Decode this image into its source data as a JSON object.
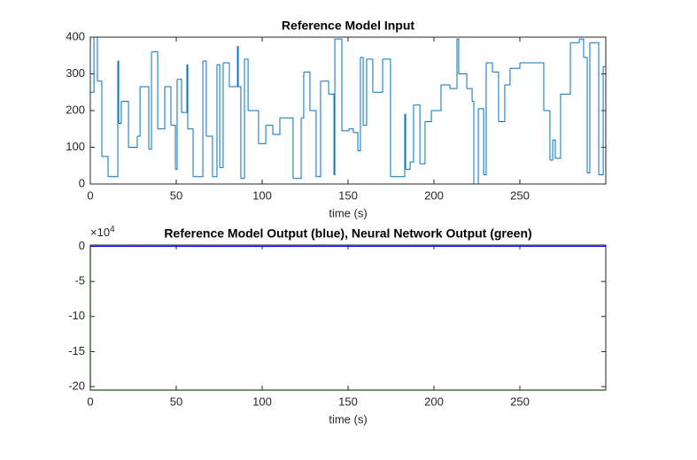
{
  "chart_data": [
    {
      "type": "stairs",
      "title": "Reference Model Input",
      "xlabel": "time (s)",
      "xlim": [
        0,
        300
      ],
      "ylim": [
        0,
        400
      ],
      "xticks": [
        0,
        50,
        100,
        150,
        200,
        250
      ],
      "yticks": [
        0,
        100,
        200,
        300,
        400
      ],
      "series": [
        {
          "color": "#0072BD",
          "x": [
            0,
            2.1,
            4.1,
            6.7,
            10.3,
            16.0,
            16.5,
            18.0,
            22.2,
            27.3,
            28.9,
            34.0,
            35.6,
            39.2,
            43.3,
            46.9,
            49.5,
            50.5,
            53.1,
            56.2,
            56.7,
            59.8,
            65.5,
            67.5,
            71.1,
            73.7,
            75.3,
            77.3,
            80.9,
            85.6,
            86.1,
            87.6,
            89.7,
            91.8,
            97.9,
            102.1,
            106.2,
            110.3,
            118.0,
            122.7,
            124.2,
            127.8,
            131.4,
            134.0,
            138.7,
            141.8,
            142.3,
            146.4,
            150.5,
            153.1,
            155.7,
            157.2,
            158.8,
            160.8,
            164.4,
            170.1,
            174.7,
            179.9,
            183.0,
            183.5,
            186.1,
            188.1,
            191.8,
            194.8,
            198.5,
            204.1,
            209.3,
            213.4,
            214.4,
            219.1,
            222.2,
            223.2,
            225.8,
            228.9,
            230.4,
            234.0,
            237.6,
            241.2,
            244.3,
            250.0,
            263.9,
            267.5,
            269.1,
            270.6,
            273.7,
            279.4,
            284.6,
            287.1,
            289.2,
            290.7,
            295.9,
            298.5,
            300
          ],
          "values": [
            250,
            400,
            280,
            75,
            20,
            335,
            165,
            225,
            100,
            130,
            265,
            95,
            360,
            150,
            265,
            160,
            40,
            285,
            195,
            325,
            150,
            20,
            335,
            130,
            20,
            325,
            45,
            330,
            265,
            375,
            265,
            15,
            340,
            200,
            110,
            160,
            135,
            180,
            15,
            180,
            305,
            200,
            20,
            280,
            245,
            25,
            395,
            145,
            150,
            140,
            90,
            345,
            160,
            340,
            250,
            340,
            20,
            20,
            190,
            40,
            60,
            215,
            55,
            170,
            200,
            270,
            260,
            395,
            300,
            260,
            225,
            0,
            205,
            25,
            330,
            305,
            170,
            270,
            315,
            330,
            200,
            65,
            120,
            70,
            245,
            385,
            395,
            345,
            30,
            385,
            25,
            320,
            320
          ]
        }
      ]
    },
    {
      "type": "line",
      "title": "Reference Model Output (blue), Neural Network Output (green)",
      "xlabel": "time (s)",
      "y_multiplier": "×10",
      "y_multiplier_exponent": "4",
      "xlim": [
        0,
        300
      ],
      "ylim": [
        -205000,
        2000
      ],
      "xticks": [
        0,
        50,
        100,
        150,
        200,
        250
      ],
      "yticks": [
        {
          "value": 0,
          "label": "0"
        },
        {
          "value": -50000,
          "label": "-5"
        },
        {
          "value": -100000,
          "label": "-10"
        },
        {
          "value": -150000,
          "label": "-15"
        },
        {
          "value": -200000,
          "label": "-20"
        }
      ],
      "series": [
        {
          "color": "#00FF00",
          "x": [
            0,
            0,
            300
          ],
          "values": [
            0,
            -205000,
            -205000
          ]
        },
        {
          "color": "#0000FF",
          "x": [
            0,
            100,
            200,
            300
          ],
          "values": [
            250,
            200,
            300,
            250
          ]
        }
      ]
    }
  ]
}
